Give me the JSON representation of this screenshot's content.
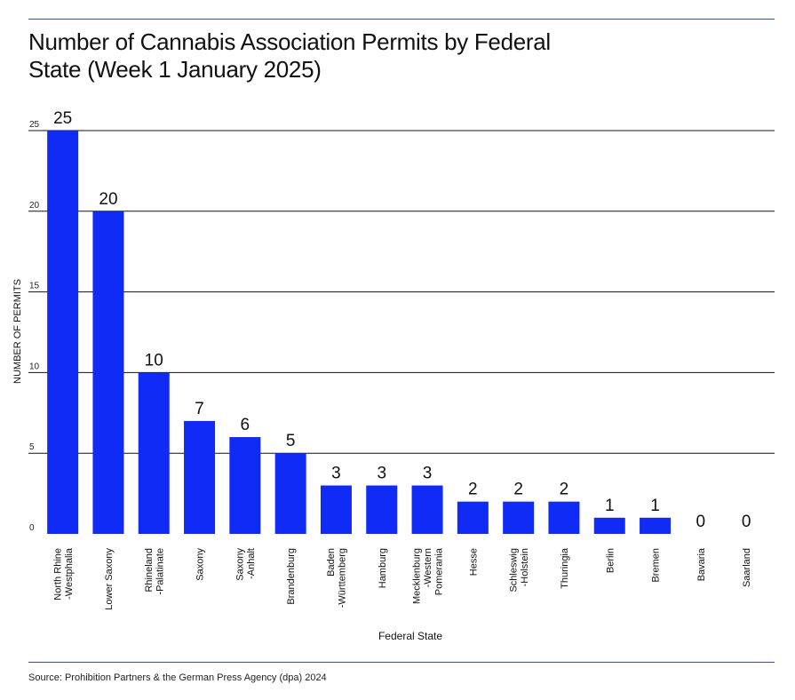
{
  "title": "Number of Cannabis Association Permits by Federal State (Week 1 January 2025)",
  "source": "Source: Prohibition Partners & the German Press Agency (dpa) 2024",
  "colors": {
    "bar": "#0f2bf5",
    "rule": "#2b4fe6",
    "grid": "#111111"
  },
  "chart_data": {
    "type": "bar",
    "xlabel": "Federal State",
    "ylabel": "NUMBER OF PERMITS",
    "ylim": [
      0,
      25
    ],
    "yticks": [
      0,
      5,
      10,
      15,
      20,
      25
    ],
    "grid": true,
    "categories": [
      "North Rhine -Westphalia",
      "Lower Saxony",
      "Rhineland -Palatinate",
      "Saxony",
      "Saxony -Anhalt",
      "Brandenburg",
      "Baden -Württemberg",
      "Hamburg",
      "Mecklenburg -Western Pomerania",
      "Hesse",
      "Schleswig -Holstein",
      "Thuringia",
      "Berlin",
      "Bremen",
      "Bavaria",
      "Saarland"
    ],
    "category_lines": [
      [
        "North Rhine",
        "-Westphalia"
      ],
      [
        "Lower Saxony"
      ],
      [
        "Rhineland",
        "-Palatinate"
      ],
      [
        "Saxony"
      ],
      [
        "Saxony",
        "-Anhalt"
      ],
      [
        "Brandenburg"
      ],
      [
        "Baden",
        "-Württemberg"
      ],
      [
        "Hamburg"
      ],
      [
        "Mecklenburg",
        "-Western",
        "Pomerania"
      ],
      [
        "Hesse"
      ],
      [
        "Schleswig",
        "-Holstein"
      ],
      [
        "Thuringia"
      ],
      [
        "Berlin"
      ],
      [
        "Bremen"
      ],
      [
        "Bavaria"
      ],
      [
        "Saarland"
      ]
    ],
    "values": [
      25,
      20,
      10,
      7,
      6,
      5,
      3,
      3,
      3,
      2,
      2,
      2,
      1,
      1,
      0,
      0
    ]
  }
}
